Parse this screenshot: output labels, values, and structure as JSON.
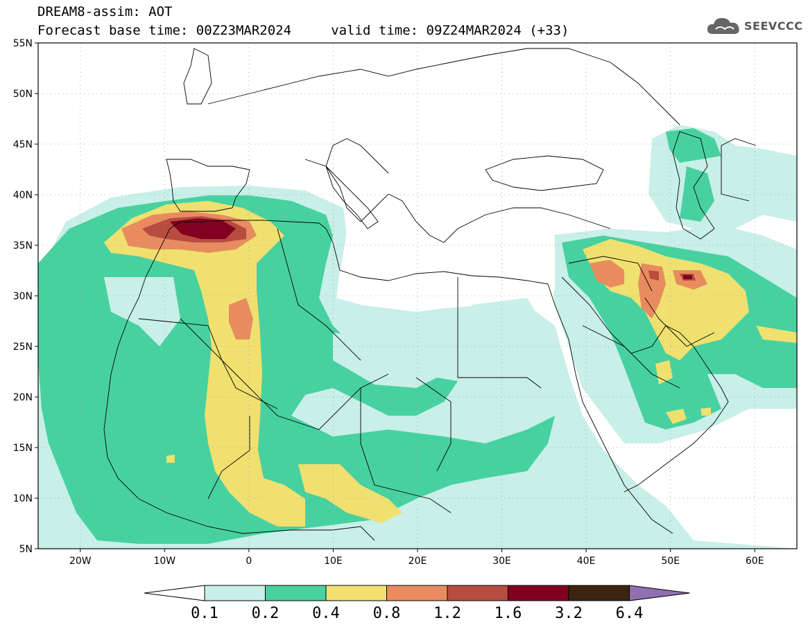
{
  "header": {
    "line1": "DREAM8-assim: AOT",
    "line2": "Forecast base time: 00Z23MAR2024     valid time: 09Z24MAR2024 (+33)"
  },
  "logo": {
    "text": "SEEVCCC",
    "icon": "cloud-icon"
  },
  "map": {
    "lon_range": [
      -25,
      65
    ],
    "lat_range": [
      5,
      55
    ],
    "lat_ticks": [
      {
        "value": 55,
        "label": "55N"
      },
      {
        "value": 50,
        "label": "50N"
      },
      {
        "value": 45,
        "label": "45N"
      },
      {
        "value": 40,
        "label": "40N"
      },
      {
        "value": 35,
        "label": "35N"
      },
      {
        "value": 30,
        "label": "30N"
      },
      {
        "value": 25,
        "label": "25N"
      },
      {
        "value": 20,
        "label": "20N"
      },
      {
        "value": 15,
        "label": "15N"
      },
      {
        "value": 10,
        "label": "10N"
      },
      {
        "value": 5,
        "label": "5N"
      }
    ],
    "lon_ticks": [
      {
        "value": -20,
        "label": "20W"
      },
      {
        "value": -10,
        "label": "10W"
      },
      {
        "value": 0,
        "label": "0"
      },
      {
        "value": 10,
        "label": "10E"
      },
      {
        "value": 20,
        "label": "20E"
      },
      {
        "value": 30,
        "label": "30E"
      },
      {
        "value": 40,
        "label": "40E"
      },
      {
        "value": 50,
        "label": "50E"
      },
      {
        "value": 60,
        "label": "60E"
      }
    ],
    "grid": "dotted"
  },
  "colorbar": {
    "labels": [
      "0.1",
      "0.2",
      "0.4",
      "0.8",
      "1.2",
      "1.6",
      "3.2",
      "6.4"
    ],
    "colors": [
      "#c8efe8",
      "#48d1a0",
      "#f0e070",
      "#e88c60",
      "#b84c40",
      "#820020",
      "#3c2410",
      "#9070b0"
    ],
    "under_color": "#ffffff"
  },
  "colors": {
    "aot_0_1": "#c8efe8",
    "aot_0_2": "#48d1a0",
    "aot_0_4": "#f0e070",
    "aot_0_8": "#e88c60",
    "aot_1_2": "#b84c40",
    "aot_1_6": "#820020"
  }
}
